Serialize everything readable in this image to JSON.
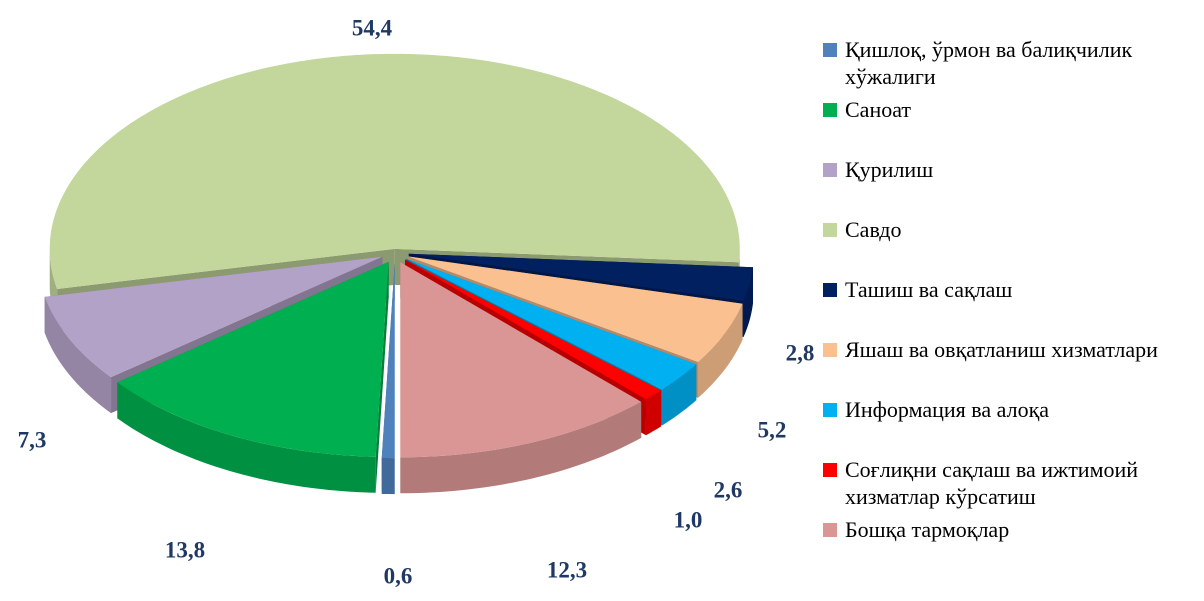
{
  "chart_data": {
    "type": "pie",
    "categories": [
      "Қишлоқ, ўрмон ва балиқчилик хўжалиги",
      "Саноат",
      "Қурилиш",
      "Савдо",
      "Ташиш ва сақлаш",
      "Яшаш ва овқатланиш хизматлари",
      "Информация ва алоқа",
      "Соғлиқни сақлаш ва ижтимоий хизматлар кўрсатиш",
      "Бошқа тармоқлар"
    ],
    "values": [
      0.6,
      13.8,
      7.3,
      54.4,
      2.8,
      5.2,
      2.6,
      1.0,
      12.3
    ],
    "value_labels": [
      "0,6",
      "13,8",
      "7,3",
      "54,4",
      "2,8",
      "5,2",
      "2,6",
      "1,0",
      "12,3"
    ],
    "colors": [
      "#4f81bd",
      "#00b050",
      "#b3a2c7",
      "#c3d69b",
      "#002060",
      "#fac090",
      "#00b0f0",
      "#ff0000",
      "#d99694"
    ],
    "legend": "right"
  }
}
